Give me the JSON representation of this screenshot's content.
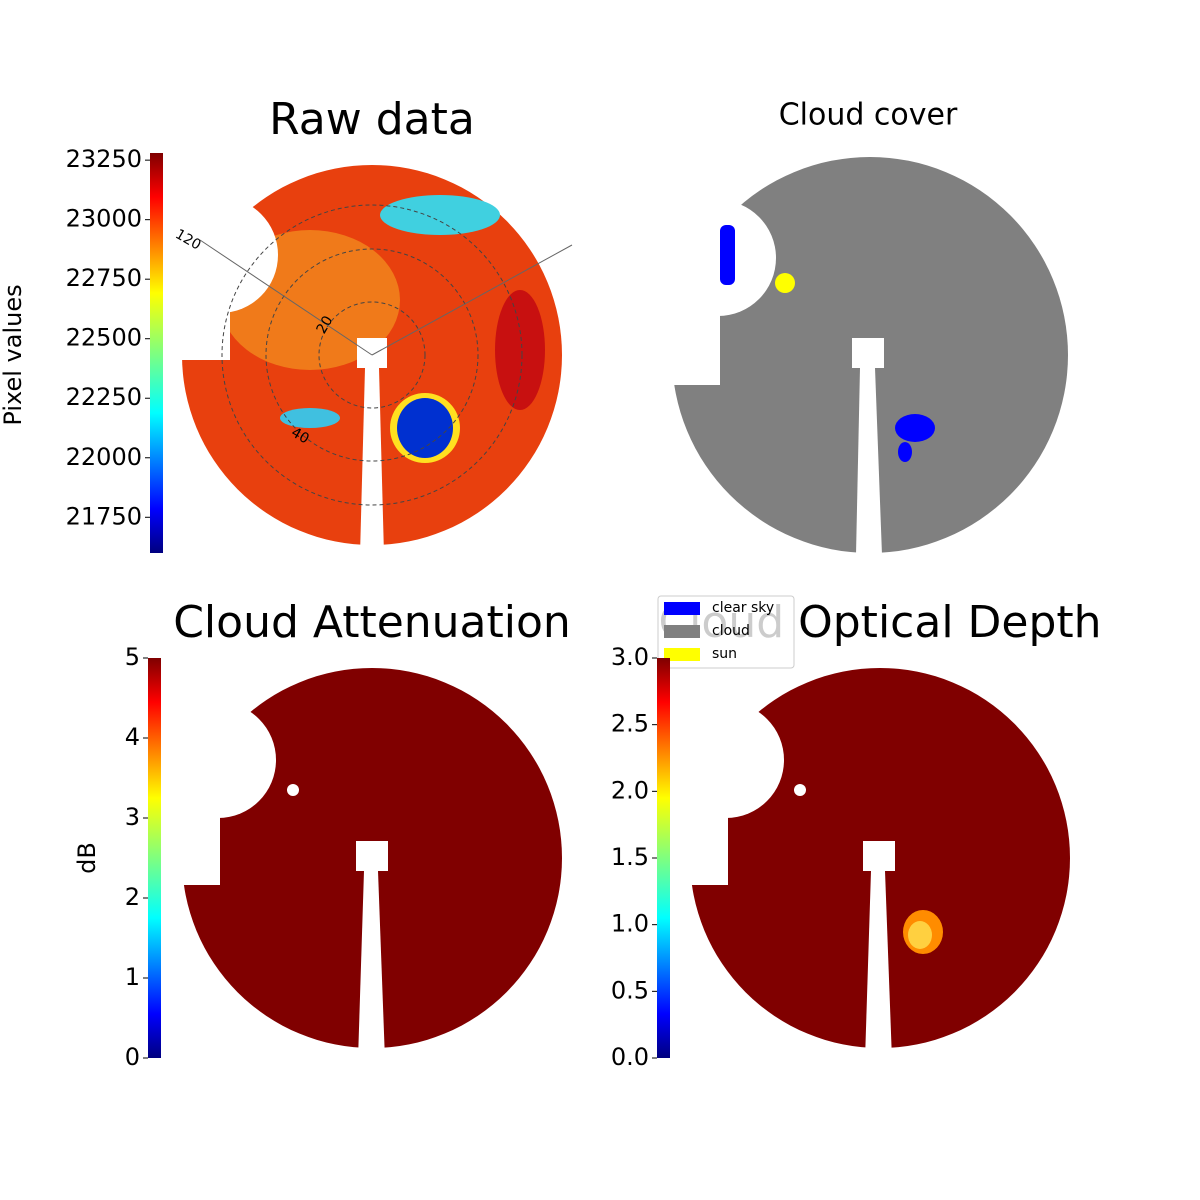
{
  "chart_data": [
    {
      "type": "image",
      "title": "Raw data",
      "colorbar_label": "Pixel values",
      "colormap": "jet",
      "clim": [
        21600,
        23280
      ],
      "cticks": [
        21750,
        22000,
        22250,
        22500,
        22750,
        23000,
        23250
      ],
      "polar_labels": [
        "120",
        "20",
        "40"
      ]
    },
    {
      "type": "image",
      "title": "Cloud cover",
      "series": [
        {
          "name": "clear sky",
          "color": "#0000ff"
        },
        {
          "name": "cloud",
          "color": "#808080"
        },
        {
          "name": "sun",
          "color": "#ffff00"
        }
      ]
    },
    {
      "type": "image",
      "title": "Cloud Attenuation",
      "colorbar_label": "dB",
      "colormap": "jet",
      "clim": [
        0,
        5
      ],
      "cticks": [
        0,
        1,
        2,
        3,
        4,
        5
      ]
    },
    {
      "type": "image",
      "title": "Cloud Optical Depth",
      "colormap": "jet",
      "clim": [
        0,
        3
      ],
      "cticks": [
        {
          "value": 0,
          "label": "0.0"
        },
        {
          "value": 0.5,
          "label": "0.5"
        },
        {
          "value": 1,
          "label": "1.0"
        },
        {
          "value": 1.5,
          "label": "1.5"
        },
        {
          "value": 2,
          "label": "2.0"
        },
        {
          "value": 2.5,
          "label": "2.5"
        },
        {
          "value": 3,
          "label": "3.0"
        }
      ]
    }
  ]
}
